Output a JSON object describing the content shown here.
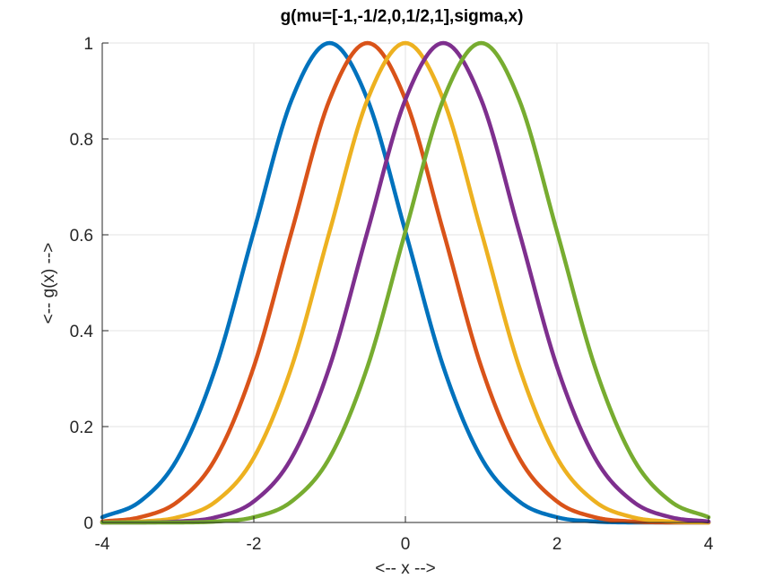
{
  "chart_data": {
    "type": "line",
    "title": "g(mu=[-1,-1/2,0,1/2,1],sigma,x)",
    "xlabel": "<-- x -->",
    "ylabel": "<-- g(x) -->",
    "xlim": [
      -4,
      4
    ],
    "ylim": [
      0,
      1
    ],
    "x_ticks": [
      -4,
      -2,
      0,
      2,
      4
    ],
    "y_ticks": [
      0,
      0.2,
      0.4,
      0.6,
      0.8,
      1
    ],
    "x_tick_labels": [
      "-4",
      "-2",
      "0",
      "2",
      "4"
    ],
    "y_tick_labels": [
      "0",
      "0.2",
      "0.4",
      "0.6",
      "0.8",
      "1"
    ],
    "grid": true,
    "x": [
      -4,
      -3.5,
      -3,
      -2.5,
      -2,
      -1.5,
      -1,
      -0.5,
      0,
      0.5,
      1,
      1.5,
      2,
      2.5,
      3,
      3.5,
      4
    ],
    "series": [
      {
        "color": "#0072BD",
        "values": [
          0.011,
          0.044,
          0.135,
          0.325,
          0.607,
          0.882,
          1.0,
          0.882,
          0.607,
          0.325,
          0.135,
          0.044,
          0.011,
          0.002,
          0.0,
          0.0,
          0.0
        ]
      },
      {
        "color": "#D95319",
        "values": [
          0.002,
          0.011,
          0.044,
          0.135,
          0.325,
          0.607,
          0.882,
          1.0,
          0.882,
          0.607,
          0.325,
          0.135,
          0.044,
          0.011,
          0.002,
          0.0,
          0.0
        ]
      },
      {
        "color": "#EDB120",
        "values": [
          0.0,
          0.002,
          0.011,
          0.044,
          0.135,
          0.325,
          0.607,
          0.882,
          1.0,
          0.882,
          0.607,
          0.325,
          0.135,
          0.044,
          0.011,
          0.002,
          0.0
        ]
      },
      {
        "color": "#7E2F8E",
        "values": [
          0.0,
          0.0,
          0.002,
          0.011,
          0.044,
          0.135,
          0.325,
          0.607,
          0.882,
          1.0,
          0.882,
          0.607,
          0.325,
          0.135,
          0.044,
          0.011,
          0.002
        ]
      },
      {
        "color": "#77AC30",
        "values": [
          0.0,
          0.0,
          0.0,
          0.002,
          0.011,
          0.044,
          0.135,
          0.325,
          0.607,
          0.882,
          1.0,
          0.882,
          0.607,
          0.325,
          0.135,
          0.044,
          0.011
        ]
      }
    ]
  }
}
